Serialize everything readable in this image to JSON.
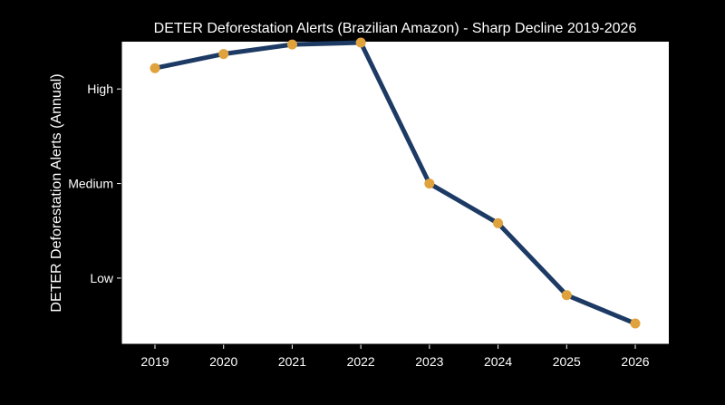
{
  "chart_data": {
    "type": "line",
    "title": "DETER Deforestation Alerts (Brazilian Amazon) - Sharp Decline 2019-2026",
    "xlabel": "",
    "ylabel": "DETER Deforestation Alerts (Annual)",
    "categories": [
      "2019",
      "2020",
      "2021",
      "2022",
      "2023",
      "2024",
      "2025",
      "2026"
    ],
    "yticks": [
      {
        "label": "Low",
        "value": 1.0
      },
      {
        "label": "Medium",
        "value": 2.0
      },
      {
        "label": "High",
        "value": 3.0
      }
    ],
    "ylim": [
      0.3,
      3.5
    ],
    "series": [
      {
        "values": [
          3.22,
          3.37,
          3.47,
          3.49,
          2.0,
          1.58,
          0.82,
          0.52
        ]
      }
    ],
    "grid": false,
    "colors": {
      "line": "#1c3a64",
      "marker": "#e0a23c",
      "plot_bg": "#ffffff",
      "page_bg": "#000000",
      "text": "#ffffff"
    }
  }
}
